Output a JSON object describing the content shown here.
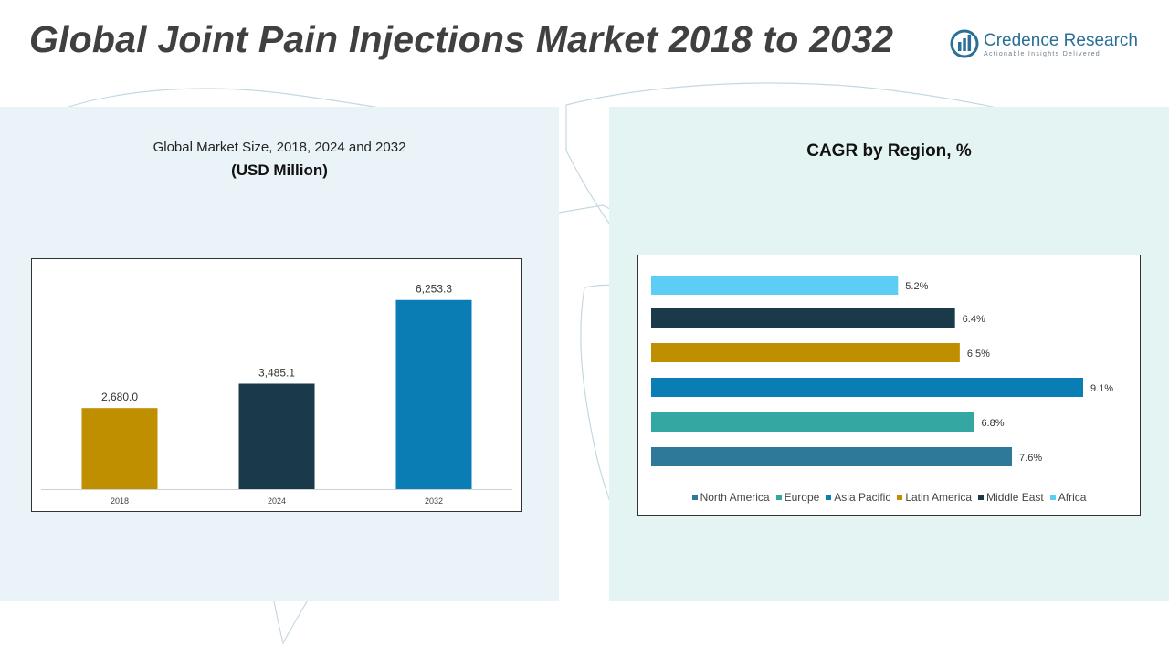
{
  "header": {
    "title": "Global Joint Pain Injections Market 2018 to 2032",
    "logo_name": "Credence Research",
    "logo_tagline": "Actionable Insights Delivered"
  },
  "colors": {
    "brand": "#2a6f97",
    "left_panel_bg": "#eaf3f8",
    "right_panel_bg": "#e3f4f3"
  },
  "chart_data": [
    {
      "type": "bar",
      "title": "Global Market Size, 2018, 2024 and 2032",
      "subtitle": "(USD Million)",
      "categories": [
        "2018",
        "2024",
        "2032"
      ],
      "values": [
        2680.0,
        3485.1,
        6253.3
      ],
      "value_labels": [
        "2,680.0",
        "3,485.1",
        "6,253.3"
      ],
      "colors": [
        "#bf8f00",
        "#1a3a4a",
        "#0a7eb4"
      ],
      "ylim": [
        0,
        7000
      ],
      "grid": false
    },
    {
      "type": "bar",
      "orientation": "horizontal",
      "title": "CAGR by Region, %",
      "categories": [
        "North America",
        "Europe",
        "Asia Pacific",
        "Latin America",
        "Middle East",
        "Africa"
      ],
      "values": [
        7.6,
        6.8,
        9.1,
        6.5,
        6.4,
        5.2
      ],
      "value_labels": [
        "7.6%",
        "6.8%",
        "9.1%",
        "6.5%",
        "6.4%",
        "5.2%"
      ],
      "colors": [
        "#2e7899",
        "#35a7a3",
        "#0a7eb4",
        "#bf8f00",
        "#1a3a4a",
        "#5ccdf5"
      ],
      "xlim": [
        0,
        9.1
      ],
      "grid": false,
      "legend": "bottom"
    }
  ]
}
